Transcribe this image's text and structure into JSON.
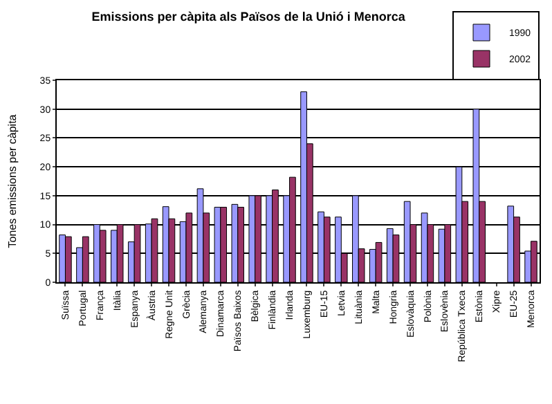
{
  "chart_data": {
    "type": "bar",
    "title": "Emissions per càpita als Països de la Unió i Menorca",
    "ylabel": "Tones emissions per càpita",
    "categories": [
      "Suïssa",
      "Portugal",
      "França",
      "Itàlia",
      "Espanya",
      "Àustria",
      "Regne Unit",
      "Grècia",
      "Alemanya",
      "Dinamarca",
      "Països Baixos",
      "Bèlgica",
      "Finlàndia",
      "Irlanda",
      "Luxemburg",
      "EU-15",
      "Letvia",
      "Lituània",
      "Malta",
      "Hongria",
      "Eslovàquia",
      "Polònia",
      "Eslovènia",
      "República Txeca",
      "Estònia",
      "Xipre",
      "EU-25",
      "Menorca"
    ],
    "series": [
      {
        "name": "1990",
        "color": "#9999ff",
        "values": [
          8.2,
          6,
          10,
          9,
          7,
          10.1,
          13.1,
          10.5,
          16.2,
          13,
          13.5,
          15,
          15,
          15,
          33,
          12.2,
          11.3,
          15,
          5.7,
          9.3,
          14,
          12,
          9.2,
          20,
          30,
          null,
          13.2,
          5.4
        ]
      },
      {
        "name": "2002",
        "color": "#993366",
        "values": [
          7.9,
          7.9,
          9,
          10,
          10,
          11,
          11,
          12,
          12,
          13,
          13,
          15,
          16,
          18.2,
          24,
          11.3,
          5,
          5.8,
          6.9,
          8.2,
          10,
          10,
          10,
          14,
          14,
          null,
          11.3,
          7.1
        ]
      }
    ],
    "ylim": [
      0,
      35
    ],
    "yticks": [
      0,
      5,
      10,
      15,
      20,
      25,
      30,
      35
    ],
    "grid": "y",
    "legend": "top right"
  }
}
